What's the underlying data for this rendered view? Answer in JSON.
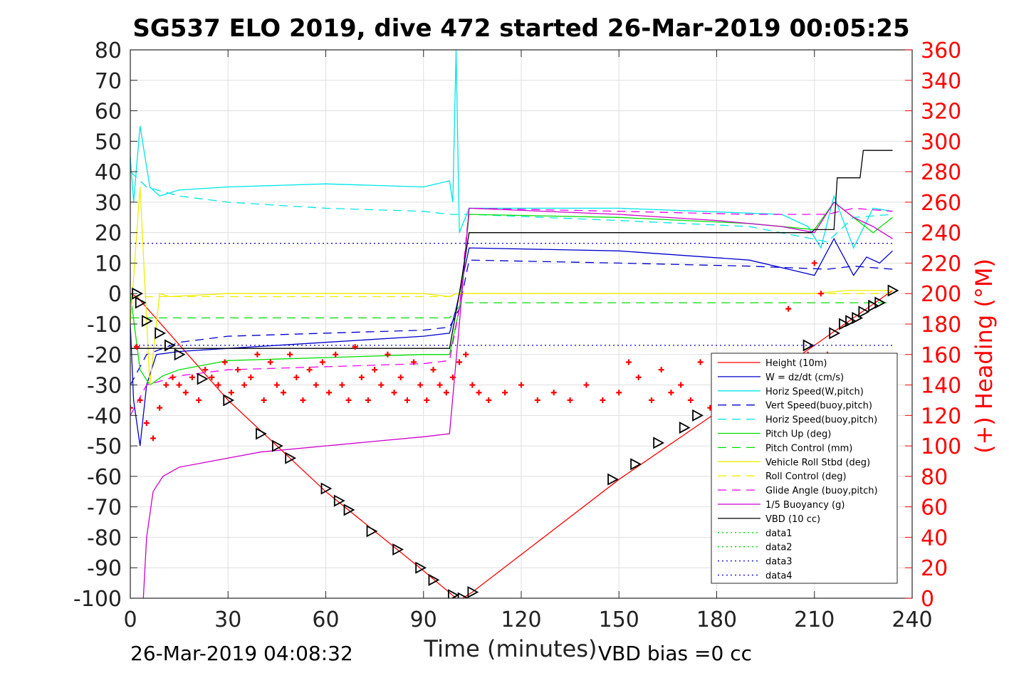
{
  "chart_data": {
    "type": "line",
    "title": "SG537 ELO 2019, dive 472 started 26-Mar-2019 00:05:25",
    "xlabel": "Time (minutes)",
    "ylabel": "",
    "y2label": "(+) Heading (°M)",
    "xlim": [
      0,
      240
    ],
    "ylim": [
      -100,
      80
    ],
    "y2lim": [
      0,
      360
    ],
    "xticks": [
      0,
      30,
      60,
      90,
      120,
      150,
      180,
      210,
      240
    ],
    "yticks": [
      80,
      70,
      60,
      50,
      40,
      30,
      20,
      10,
      0,
      -10,
      -20,
      -30,
      -40,
      -50,
      -60,
      -70,
      -80,
      -90,
      -100
    ],
    "y2ticks": [
      360,
      340,
      320,
      300,
      280,
      260,
      240,
      220,
      200,
      180,
      160,
      140,
      120,
      100,
      80,
      60,
      40,
      20,
      0
    ],
    "grid": true,
    "legend_position": "bottom-right",
    "footer_left": "26-Mar-2019 04:08:32",
    "footer_right": "VBD bias =0 cc",
    "series": [
      {
        "name": "Height (10m)",
        "color": "#ff0000",
        "style": "solid",
        "x": [
          0,
          2,
          30,
          60,
          90,
          100,
          102,
          105,
          150,
          180,
          210,
          234
        ],
        "y": [
          0,
          -1,
          -35,
          -65,
          -91,
          -100,
          -100,
          -98,
          -61,
          -39,
          -17,
          1
        ]
      },
      {
        "name": "W = dz/dt (cm/s)",
        "color": "#0000cc",
        "style": "solid",
        "x": [
          0,
          1,
          3,
          5,
          8,
          15,
          30,
          60,
          90,
          98,
          100,
          104,
          150,
          190,
          210,
          216,
          222,
          226,
          230,
          234
        ],
        "y": [
          -10,
          -35,
          -50,
          -30,
          -20,
          -19,
          -18,
          -16,
          -14,
          -13,
          -5,
          15,
          14,
          11,
          6,
          18,
          6,
          12,
          10,
          14
        ]
      },
      {
        "name": "Horiz Speed(W,pitch)",
        "color": "#00e5e5",
        "style": "solid",
        "x": [
          0,
          1,
          3,
          6,
          9,
          15,
          30,
          60,
          90,
          98,
          99,
          100,
          101,
          104,
          150,
          200,
          208,
          212,
          216,
          222,
          228,
          234
        ],
        "y": [
          45,
          30,
          55,
          35,
          32,
          34,
          35,
          36,
          35,
          37,
          30,
          80,
          20,
          28,
          28,
          26,
          22,
          15,
          32,
          15,
          28,
          27
        ]
      },
      {
        "name": "Vert Speed(buoy,pitch)",
        "color": "#0000cc",
        "style": "dashed",
        "x": [
          0,
          5,
          15,
          30,
          60,
          90,
          98,
          101,
          104,
          150,
          190,
          214,
          222,
          234
        ],
        "y": [
          -30,
          -20,
          -16,
          -14,
          -13,
          -12,
          -11,
          -5,
          11,
          10,
          9,
          8,
          9,
          8
        ]
      },
      {
        "name": "Horiz Speed(buoy,pitch)",
        "color": "#00e5e5",
        "style": "dashed",
        "x": [
          0,
          5,
          15,
          30,
          60,
          90,
          98,
          101,
          104,
          150,
          190,
          214,
          222,
          234
        ],
        "y": [
          40,
          35,
          32,
          30,
          28,
          27,
          26,
          26,
          26,
          24,
          22,
          17,
          25,
          26
        ]
      },
      {
        "name": "Pitch Up (deg)",
        "color": "#00dd00",
        "style": "solid",
        "x": [
          0,
          3,
          6,
          10,
          15,
          30,
          60,
          90,
          98,
          101,
          104,
          150,
          190,
          210,
          216,
          222,
          228,
          234
        ],
        "y": [
          0,
          -25,
          -30,
          -27,
          -25,
          -22,
          -21,
          -20,
          -20,
          -5,
          26,
          25,
          23,
          21,
          30,
          25,
          20,
          25
        ]
      },
      {
        "name": "Pitch Control (mm)",
        "color": "#00dd00",
        "style": "dashed",
        "x": [
          0,
          10,
          98,
          102,
          210,
          234
        ],
        "y": [
          -8,
          -8,
          -8,
          -3,
          -3,
          -3
        ]
      },
      {
        "name": "Vehicle Roll Stbd (deg)",
        "color": "#eeee00",
        "style": "solid",
        "x": [
          0,
          3,
          6,
          9,
          12,
          30,
          60,
          90,
          98,
          100,
          104,
          150,
          200,
          210,
          220,
          234
        ],
        "y": [
          -10,
          35,
          -30,
          0,
          -1,
          0,
          0,
          0,
          -1,
          0,
          0,
          0,
          0,
          0,
          1,
          1
        ]
      },
      {
        "name": "Roll Control (deg)",
        "color": "#eeee00",
        "style": "dashed",
        "x": [
          0,
          98,
          102,
          234
        ],
        "y": [
          -1,
          -1,
          0,
          0
        ]
      },
      {
        "name": "Glide Angle (buoy,pitch)",
        "color": "#ee00ee",
        "style": "dashed",
        "x": [
          0,
          5,
          15,
          30,
          60,
          90,
          98,
          101,
          104,
          150,
          190,
          214,
          222,
          234
        ],
        "y": [
          -40,
          -30,
          -27,
          -25,
          -24,
          -23,
          -22,
          -5,
          28,
          27,
          26,
          26,
          28,
          27
        ]
      },
      {
        "name": "1/5 Buoyancy (g)",
        "color": "#cc00cc",
        "style": "solid",
        "x": [
          4,
          5,
          7,
          10,
          15,
          25,
          40,
          60,
          90,
          98,
          101,
          104,
          150,
          180,
          200,
          210,
          216,
          222,
          228,
          234
        ],
        "y": [
          -100,
          -80,
          -65,
          -60,
          -57,
          -55,
          -52,
          -50,
          -47,
          -46,
          -10,
          28,
          26,
          24,
          22,
          20,
          30,
          25,
          22,
          18
        ]
      },
      {
        "name": "VBD (10 cc)",
        "color": "#000000",
        "style": "solid",
        "x": [
          0,
          1,
          98,
          101,
          104,
          209,
          210,
          216,
          217,
          224,
          225,
          234
        ],
        "y": [
          -18,
          -18,
          -18,
          0,
          20,
          20,
          21,
          21,
          38,
          38,
          47,
          47
        ]
      },
      {
        "name": "data1",
        "color": "#00dd00",
        "style": "dotted",
        "x": [],
        "y": []
      },
      {
        "name": "data2",
        "color": "#00dd00",
        "style": "dotted",
        "x": [],
        "y": []
      },
      {
        "name": "data3",
        "color": "#0000cc",
        "style": "dotted",
        "x": [
          0,
          234
        ],
        "y": [
          16.5,
          16.5
        ]
      },
      {
        "name": "data4",
        "color": "#0000cc",
        "style": "dotted",
        "x": [
          0,
          234
        ],
        "y": [
          -17,
          -17
        ]
      }
    ],
    "heading_series": {
      "color": "#ff0000",
      "marker": "+",
      "x": [
        0,
        2,
        3,
        5,
        7,
        9,
        11,
        13,
        15,
        17,
        19,
        21,
        23,
        25,
        27,
        29,
        31,
        33,
        35,
        37,
        39,
        41,
        43,
        45,
        47,
        49,
        51,
        53,
        55,
        57,
        59,
        61,
        63,
        65,
        67,
        69,
        71,
        73,
        75,
        77,
        79,
        81,
        83,
        85,
        87,
        89,
        91,
        93,
        95,
        97,
        99,
        101,
        103,
        105,
        107,
        110,
        115,
        120,
        125,
        130,
        135,
        140,
        145,
        150,
        153,
        156,
        160,
        163,
        166,
        169,
        172,
        175,
        178,
        181,
        184,
        187,
        190,
        193,
        196,
        199,
        202,
        204,
        206,
        208,
        210,
        212,
        214,
        216,
        218,
        220,
        222,
        224
      ],
      "y": [
        125,
        165,
        130,
        115,
        105,
        125,
        140,
        145,
        140,
        135,
        145,
        130,
        150,
        145,
        140,
        155,
        135,
        150,
        140,
        145,
        160,
        130,
        155,
        140,
        135,
        160,
        145,
        130,
        150,
        140,
        155,
        135,
        160,
        140,
        130,
        165,
        145,
        130,
        150,
        140,
        160,
        135,
        145,
        130,
        155,
        140,
        130,
        150,
        140,
        135,
        145,
        155,
        160,
        140,
        135,
        130,
        135,
        140,
        130,
        135,
        130,
        140,
        130,
        135,
        155,
        145,
        130,
        150,
        135,
        140,
        130,
        155,
        125,
        150,
        135,
        150,
        140,
        135,
        140,
        145,
        190,
        150,
        130,
        160,
        220,
        200,
        160,
        150,
        150,
        140,
        135,
        155
      ]
    },
    "markers": {
      "x": [
        2,
        3,
        5,
        9,
        12,
        15,
        22,
        30,
        40,
        45,
        49,
        60,
        64,
        67,
        74,
        82,
        89,
        93,
        99,
        102,
        105,
        148,
        155,
        162,
        170,
        174,
        198,
        208,
        216,
        219,
        221,
        223,
        225,
        228,
        230,
        234
      ],
      "y": [
        0,
        -3,
        -9,
        -13,
        -17,
        -20,
        -28,
        -35,
        -46,
        -50,
        -54,
        -64,
        -68,
        -71,
        -78,
        -84,
        -90,
        -94,
        -99,
        -100,
        -98,
        -61,
        -56,
        -49,
        -44,
        -40,
        -29,
        -17,
        -13,
        -10,
        -9,
        -8,
        -6,
        -4,
        -3,
        1
      ]
    }
  }
}
